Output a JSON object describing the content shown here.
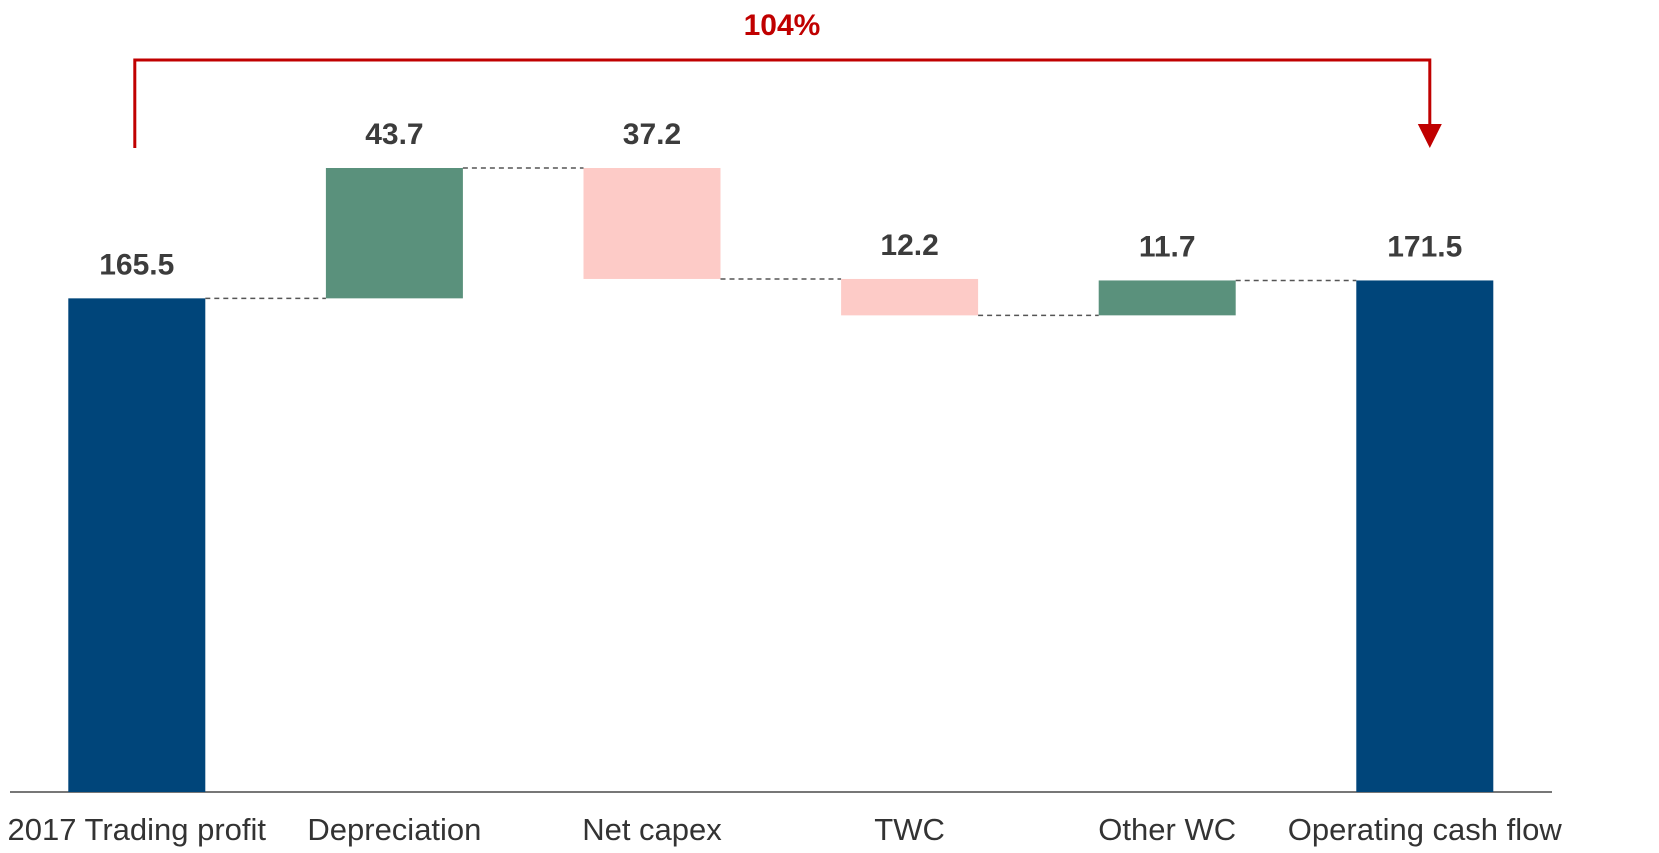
{
  "chart_data": {
    "type": "waterfall",
    "categories": [
      "2017 Trading profit",
      "Depreciation",
      "Net capex",
      "TWC",
      "Other WC",
      "Operating cash flow"
    ],
    "values": [
      165.5,
      43.7,
      -37.2,
      -12.2,
      11.7,
      171.5
    ],
    "value_labels": [
      "165.5",
      "43.7",
      "37.2",
      "12.2",
      "11.7",
      "171.5"
    ],
    "colors": [
      "#00457a",
      "#5a917c",
      "#fdcbc7",
      "#fdcbc7",
      "#5a917c",
      "#00457a"
    ],
    "annotation": "104%",
    "annotation_color": "#c00000"
  }
}
